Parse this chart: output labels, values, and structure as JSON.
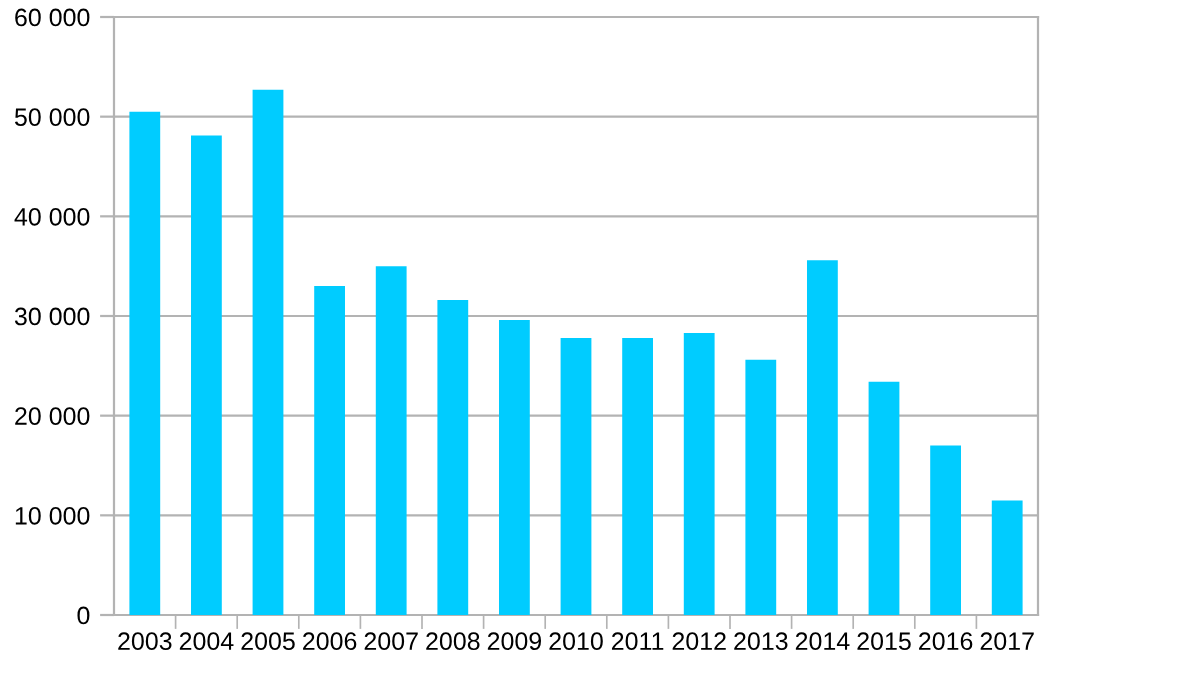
{
  "chart_data": {
    "type": "bar",
    "categories": [
      "2003",
      "2004",
      "2005",
      "2006",
      "2007",
      "2008",
      "2009",
      "2010",
      "2011",
      "2012",
      "2013",
      "2014",
      "2015",
      "2016",
      "2017"
    ],
    "values": [
      50500,
      48100,
      52700,
      33000,
      35000,
      31600,
      29600,
      27800,
      27800,
      28300,
      25600,
      35600,
      23400,
      17000,
      11500
    ],
    "color": "#00ccff",
    "ylim": [
      0,
      60000
    ],
    "yticks": [
      0,
      {
        "value": 10000,
        "label": "10 000"
      },
      {
        "value": 20000,
        "label": "20 000"
      },
      {
        "value": 30000,
        "label": "30 000"
      },
      {
        "value": 40000,
        "label": "40 000"
      },
      {
        "value": 50000,
        "label": "50 000"
      },
      {
        "value": 60000,
        "label": "60 000"
      }
    ],
    "grid": "y"
  }
}
